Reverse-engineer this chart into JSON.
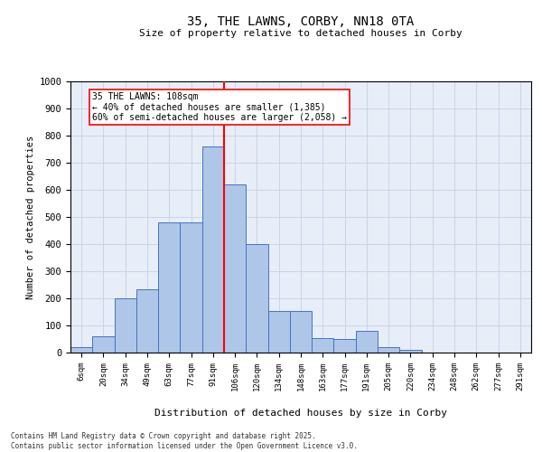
{
  "title1": "35, THE LAWNS, CORBY, NN18 0TA",
  "title2": "Size of property relative to detached houses in Corby",
  "xlabel": "Distribution of detached houses by size in Corby",
  "ylabel": "Number of detached properties",
  "categories": [
    "6sqm",
    "20sqm",
    "34sqm",
    "49sqm",
    "63sqm",
    "77sqm",
    "91sqm",
    "106sqm",
    "120sqm",
    "134sqm",
    "148sqm",
    "163sqm",
    "177sqm",
    "191sqm",
    "205sqm",
    "220sqm",
    "234sqm",
    "248sqm",
    "262sqm",
    "277sqm",
    "291sqm"
  ],
  "values": [
    20,
    60,
    200,
    235,
    480,
    480,
    760,
    620,
    400,
    155,
    155,
    55,
    50,
    80,
    20,
    10,
    0,
    0,
    0,
    0,
    0
  ],
  "bar_color": "#aec6e8",
  "bar_edge_color": "#4472c4",
  "grid_color": "#c8d4e8",
  "background_color": "#e8eef8",
  "vline_color": "red",
  "vline_pos": 6.5,
  "annotation_text": "35 THE LAWNS: 108sqm\n← 40% of detached houses are smaller (1,385)\n60% of semi-detached houses are larger (2,058) →",
  "ylim": [
    0,
    1000
  ],
  "yticks": [
    0,
    100,
    200,
    300,
    400,
    500,
    600,
    700,
    800,
    900,
    1000
  ],
  "footer": "Contains HM Land Registry data © Crown copyright and database right 2025.\nContains public sector information licensed under the Open Government Licence v3.0.",
  "fig_width": 6.0,
  "fig_height": 5.0,
  "dpi": 100
}
